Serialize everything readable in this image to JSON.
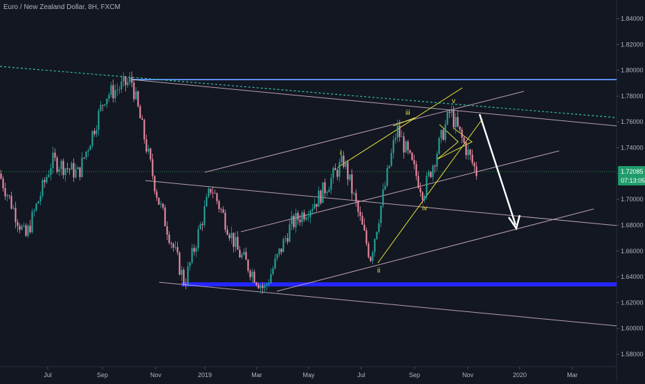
{
  "title": "Euro / New Zealand Dollar, 8H, FXCM",
  "colors": {
    "background": "#131722",
    "candle_up": "#26a69a",
    "candle_down": "#ef8fa4",
    "channel": "#d8b8cc",
    "wave_line": "#e6e83a",
    "resistance": "#5b8def",
    "support": "#2525ff",
    "trend_dashed": "#34c7a4",
    "arrow": "#ffffff",
    "price_badge": "#1f9c6a",
    "current_line": "#2a8a4a"
  },
  "price_axis": {
    "labels": [
      "1.84000",
      "1.82000",
      "1.80000",
      "1.78000",
      "1.76000",
      "1.74000",
      "1.72000",
      "1.70000",
      "1.68000",
      "1.66000",
      "1.64000",
      "1.62000",
      "1.60000",
      "1.58000"
    ],
    "current_price": "1.72085",
    "countdown": "07:13:05"
  },
  "time_axis": {
    "labels": [
      "Jul",
      "Sep",
      "Nov",
      "2019",
      "Mar",
      "May",
      "Jul",
      "Sep",
      "Nov",
      "2020",
      "Mar"
    ]
  },
  "wave_labels": [
    "i",
    "ii",
    "iii",
    "iv",
    "v"
  ],
  "chart_data": {
    "type": "candlestick",
    "title": "Euro / New Zealand Dollar, 8H, FXCM",
    "symbol": "EURNZD",
    "timeframe": "8H",
    "source": "FXCM",
    "ylim": [
      1.57,
      1.85
    ],
    "yticks": [
      1.84,
      1.82,
      1.8,
      1.78,
      1.76,
      1.74,
      1.72,
      1.7,
      1.68,
      1.66,
      1.64,
      1.62,
      1.6,
      1.58
    ],
    "xticks": [
      "Jul",
      "Sep",
      "Nov",
      "2019",
      "Mar",
      "May",
      "Jul",
      "Sep",
      "Nov",
      "2020",
      "Mar"
    ],
    "last_price": 1.72085,
    "approx_price_path": [
      {
        "t": "May 2018",
        "close": 1.72
      },
      {
        "t": "Jun 2018",
        "close": 1.67
      },
      {
        "t": "Jul 2018",
        "close": 1.73
      },
      {
        "t": "Aug 2018",
        "close": 1.72
      },
      {
        "t": "Sep 2018",
        "close": 1.78
      },
      {
        "t": "Oct 2018",
        "close": 1.792
      },
      {
        "t": "Nov 2018",
        "close": 1.7
      },
      {
        "t": "Dec 2018",
        "close": 1.635
      },
      {
        "t": "Jan 2019",
        "close": 1.71
      },
      {
        "t": "Feb 2019",
        "close": 1.66
      },
      {
        "t": "Mar 2019",
        "close": 1.63
      },
      {
        "t": "Apr 2019",
        "close": 1.68
      },
      {
        "t": "May 2019",
        "close": 1.7
      },
      {
        "t": "Jun 2019",
        "close": 1.73
      },
      {
        "t": "Jul 2019",
        "close": 1.655
      },
      {
        "t": "Aug 2019",
        "close": 1.755
      },
      {
        "t": "Sep 2019",
        "close": 1.705
      },
      {
        "t": "Oct 2019",
        "close": 1.768
      },
      {
        "t": "Nov 2019",
        "close": 1.72085
      }
    ],
    "horizontal_levels": [
      {
        "name": "resistance",
        "price": 1.793
      },
      {
        "name": "support",
        "price": 1.634
      }
    ],
    "annotations": [
      "i",
      "ii",
      "iii",
      "iv",
      "v"
    ]
  }
}
